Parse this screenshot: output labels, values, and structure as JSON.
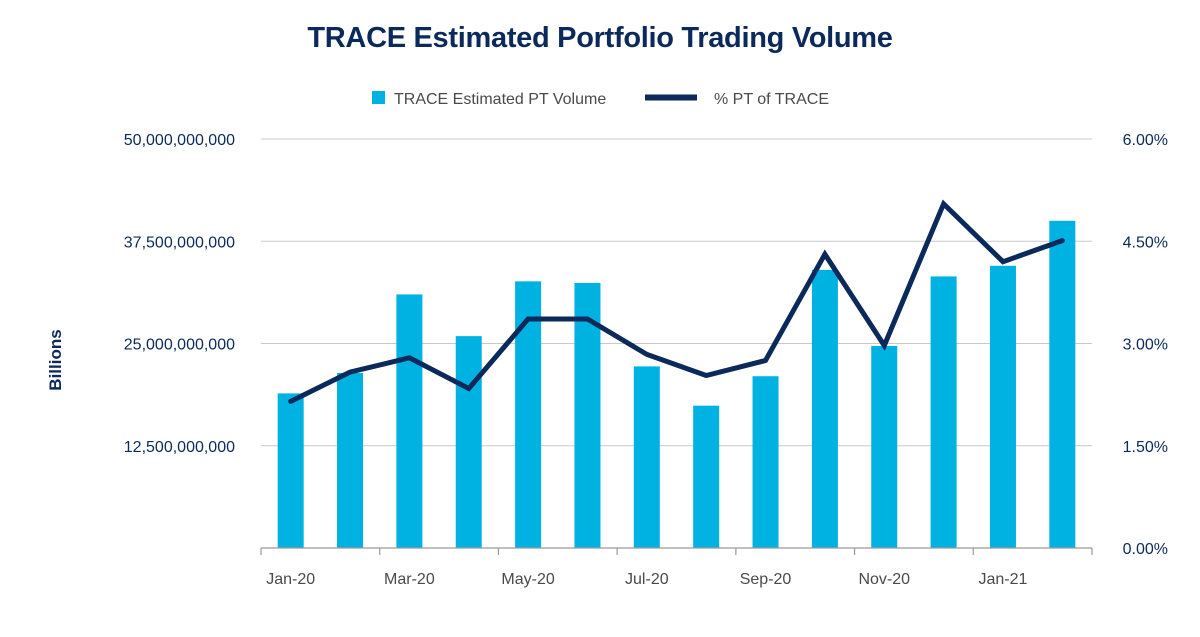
{
  "chart_data": {
    "type": "bar",
    "title": "TRACE Estimated Portfolio Trading Volume",
    "ylabel": "Billions",
    "ylabel_right": "",
    "xlabel": "",
    "categories": [
      "Jan-20",
      "Feb-20",
      "Mar-20",
      "Apr-20",
      "May-20",
      "Jun-20",
      "Jul-20",
      "Aug-20",
      "Sep-20",
      "Oct-20",
      "Nov-20",
      "Dec-20",
      "Jan-21",
      "Feb-21"
    ],
    "x_tick_labels": [
      "Jan-20",
      "",
      "Mar-20",
      "",
      "May-20",
      "",
      "Jul-20",
      "",
      "Sep-20",
      "",
      "Nov-20",
      "",
      "Jan-21",
      ""
    ],
    "ylim": [
      0,
      50000000000
    ],
    "ylim_right": [
      0,
      0.06
    ],
    "y_ticks": [
      "",
      "12,500,000,000",
      "25,000,000,000",
      "37,500,000,000",
      "50,000,000,000"
    ],
    "y_ticks_right": [
      "0.00%",
      "1.50%",
      "3.00%",
      "4.50%",
      "6.00%"
    ],
    "grid": true,
    "legend_position": "top-center",
    "series": [
      {
        "name": "TRACE Estimated PT Volume",
        "type": "bar",
        "axis": "left",
        "color": "#00b2e2",
        "values": [
          18900000000,
          21400000000,
          31000000000,
          25900000000,
          32600000000,
          32400000000,
          22200000000,
          17400000000,
          21000000000,
          34000000000,
          24700000000,
          33200000000,
          34500000000,
          40000000000
        ]
      },
      {
        "name": "% PT of TRACE",
        "type": "line",
        "axis": "right",
        "color": "#0b2a5b",
        "values": [
          0.0215,
          0.0258,
          0.0279,
          0.0234,
          0.0336,
          0.0336,
          0.0284,
          0.0253,
          0.0275,
          0.0431,
          0.0297,
          0.0505,
          0.042,
          0.0451
        ]
      }
    ]
  }
}
